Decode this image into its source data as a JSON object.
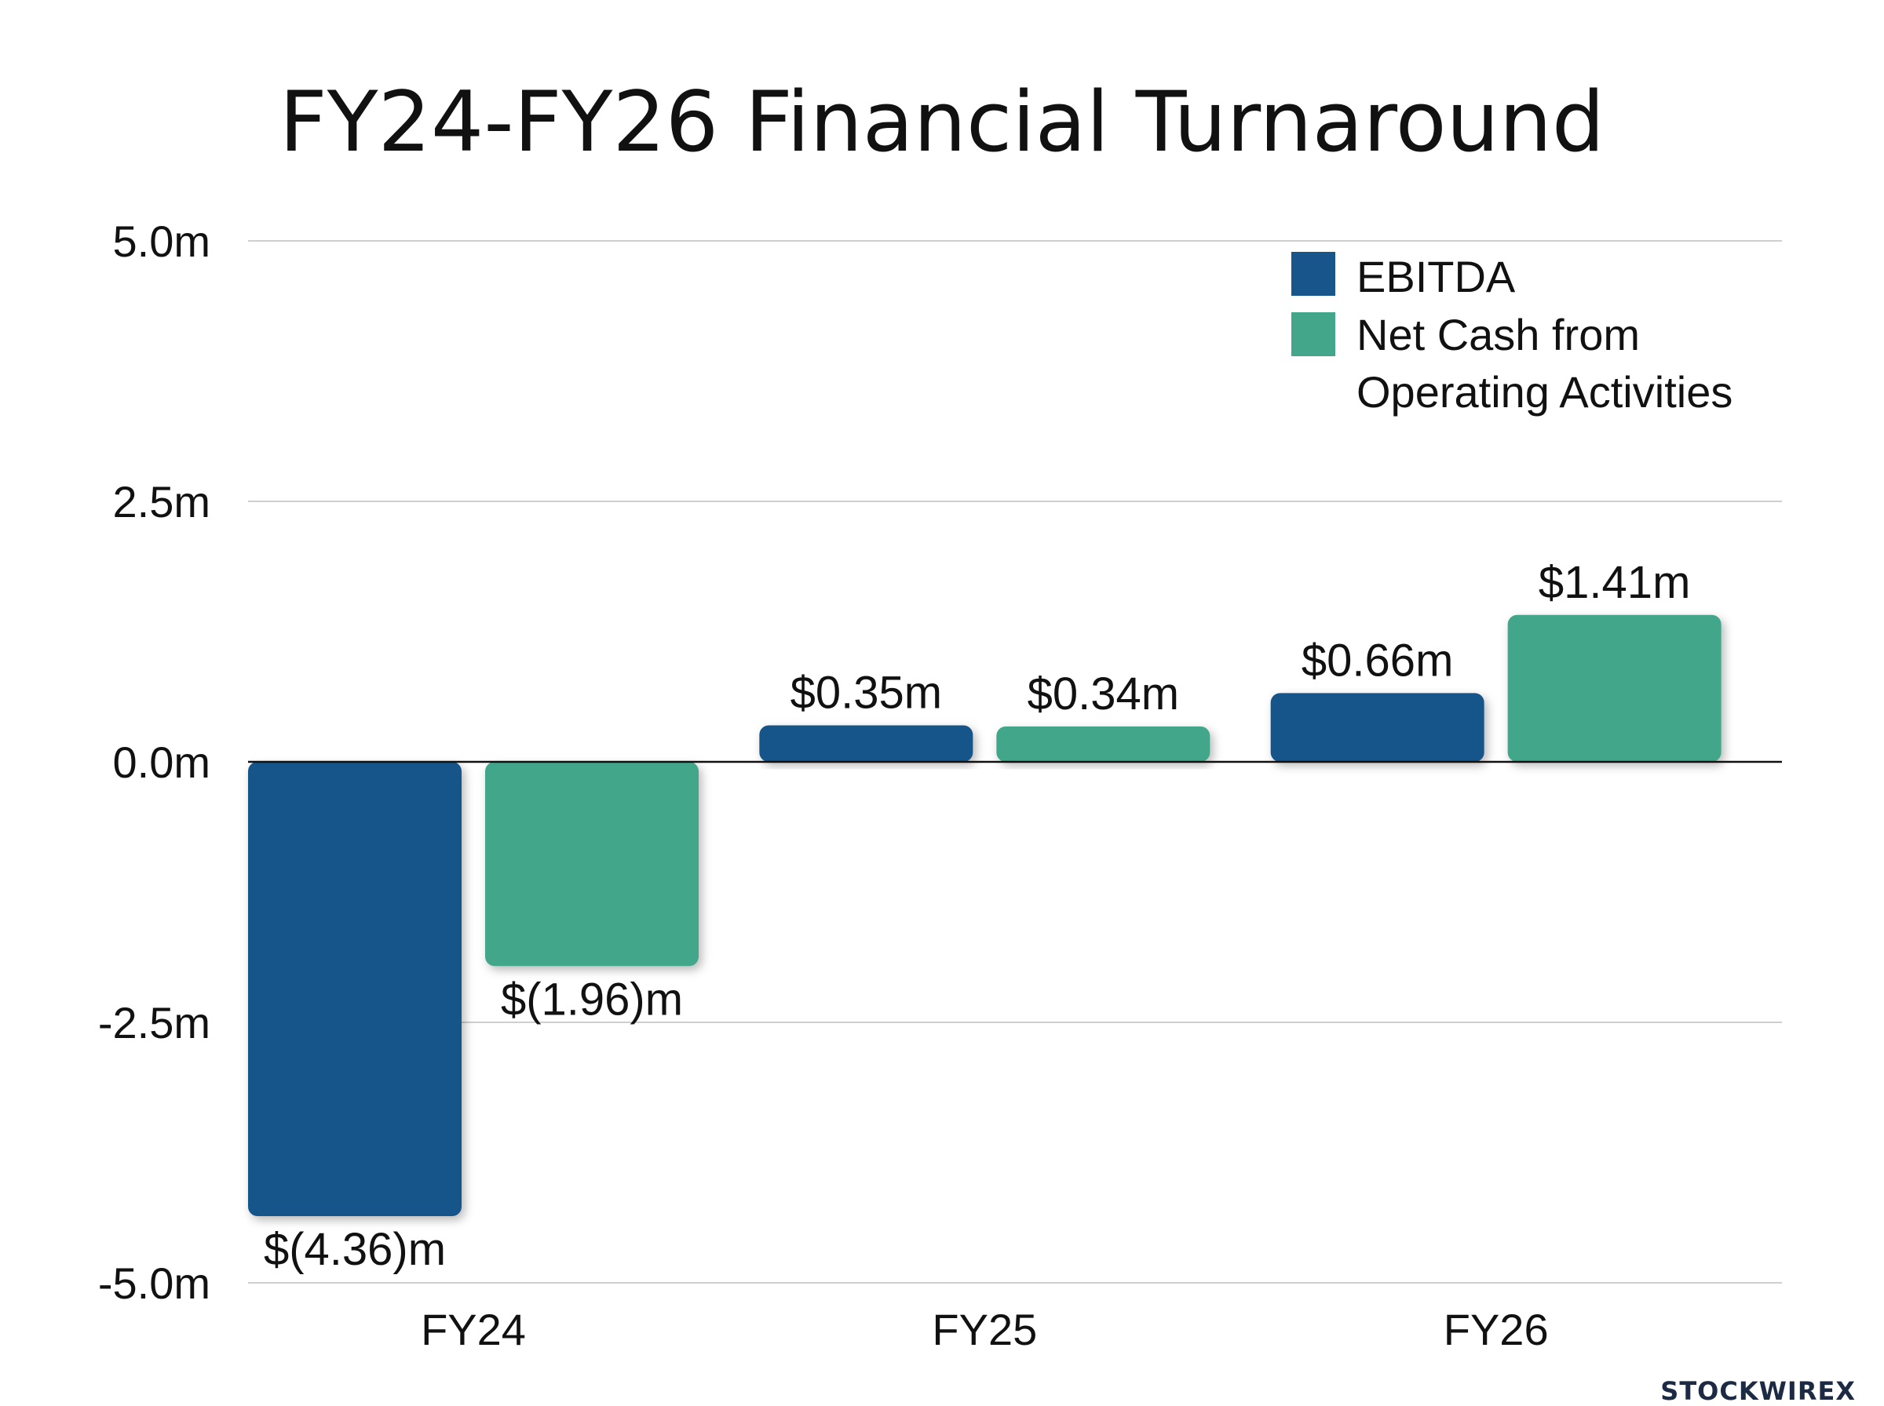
{
  "brand": {
    "text": "STOCKWIREX"
  },
  "chart_data": {
    "type": "bar",
    "title": "FY24-FY26 Financial Turnaround",
    "xlabel": "",
    "ylabel": "",
    "ylim": [
      -5.0,
      5.0
    ],
    "yticks": [
      {
        "value": 5.0,
        "label": "5.0m"
      },
      {
        "value": 2.5,
        "label": "2.5m"
      },
      {
        "value": 0.0,
        "label": "0.0m"
      },
      {
        "value": -2.5,
        "label": "-2.5m"
      },
      {
        "value": -5.0,
        "label": "-5.0m"
      }
    ],
    "categories": [
      "FY24",
      "FY25",
      "FY26"
    ],
    "series": [
      {
        "name": "EBITDA",
        "color": "#17558a",
        "values": [
          -4.36,
          0.35,
          0.66
        ],
        "labels": [
          "$(4.36)m",
          "$0.35m",
          "$0.66m"
        ]
      },
      {
        "name": "Net Cash from Operating Activities",
        "legend_lines": [
          "Net Cash from",
          "Operating Activities"
        ],
        "color": "#43a68b",
        "values": [
          -1.96,
          0.34,
          1.41
        ],
        "labels": [
          "$(1.96)m",
          "$0.34m",
          "$1.41m"
        ]
      }
    ],
    "grid": true,
    "legend_position": "top-right"
  }
}
